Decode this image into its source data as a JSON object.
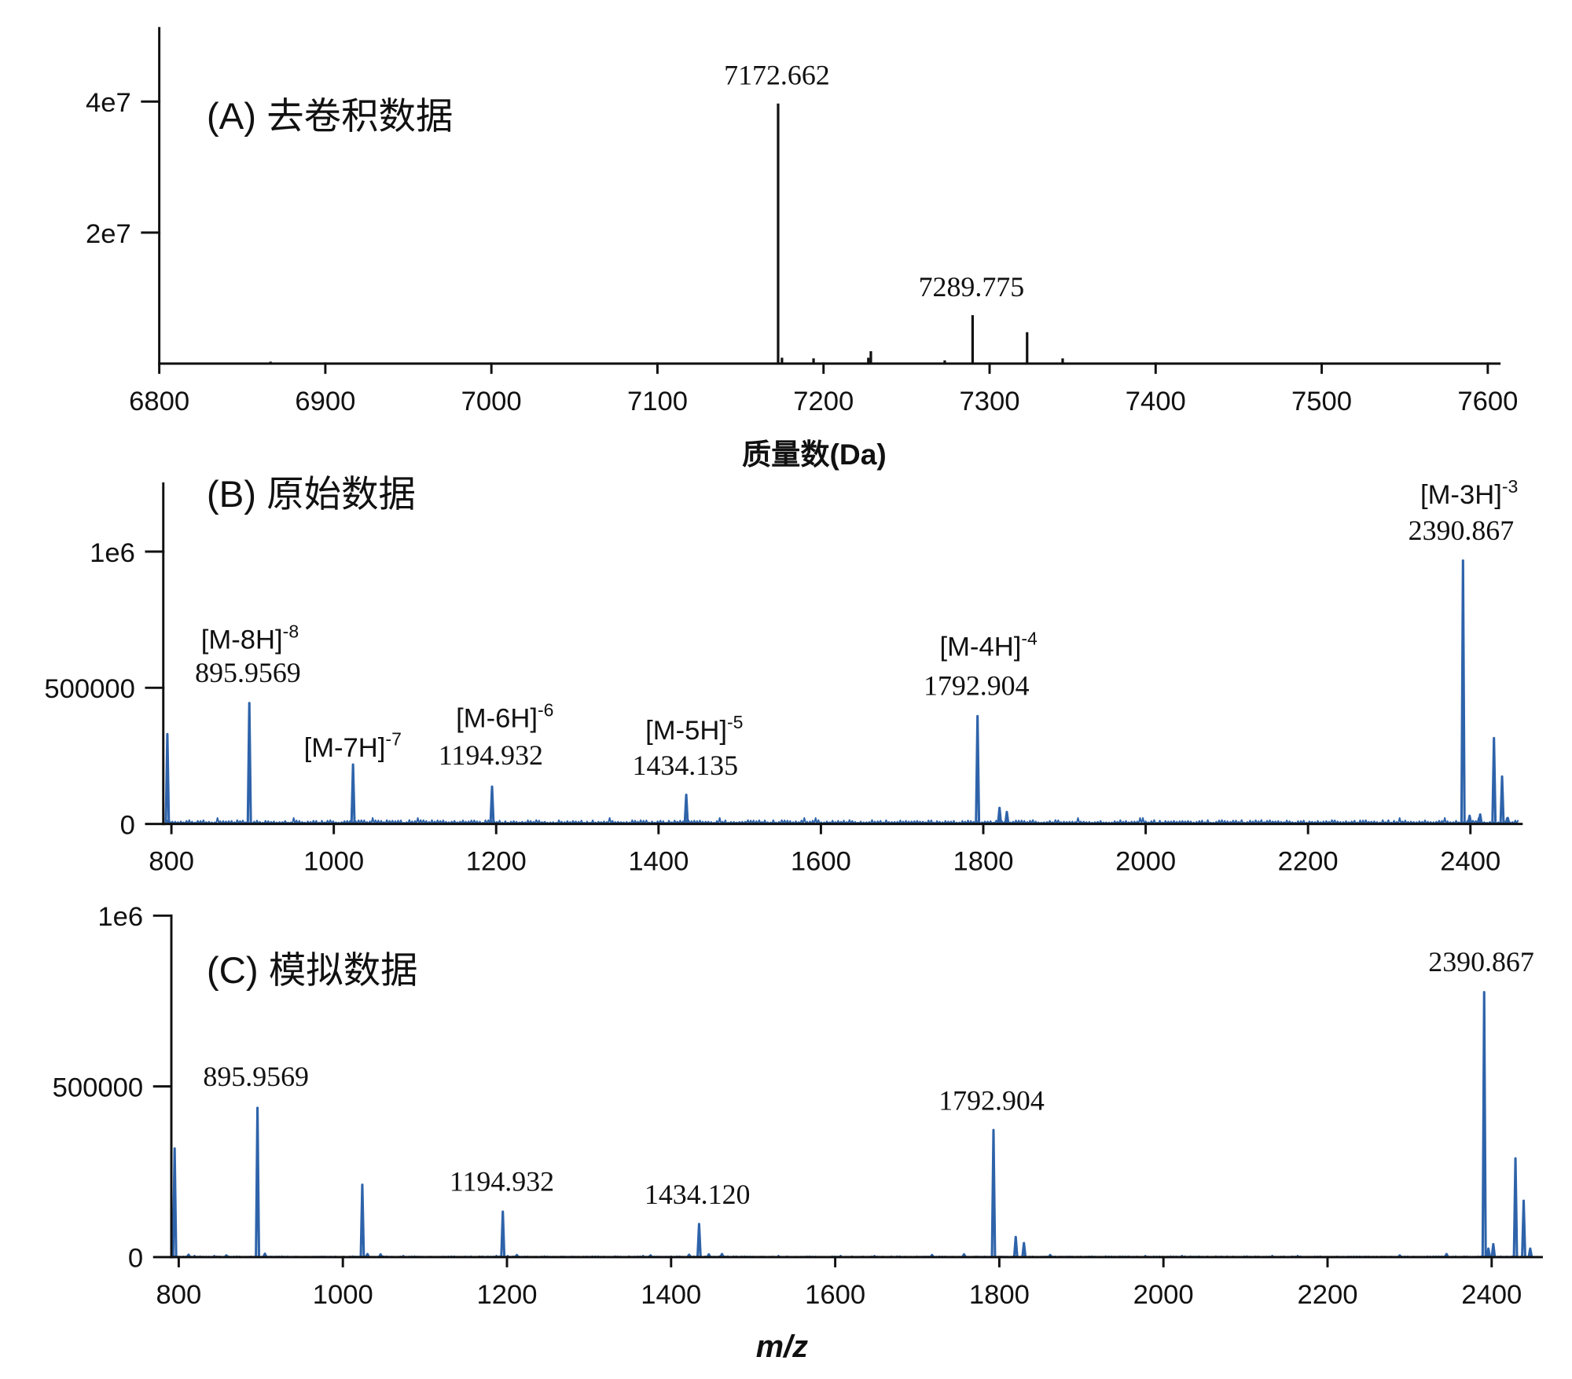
{
  "chart_data": [
    {
      "type": "bar",
      "title": "(A) 去卷积数据",
      "xlabel": "质量数(Da)",
      "xlim": [
        6800,
        7607
      ],
      "ylim": [
        0,
        51200000
      ],
      "xticks": [
        6800,
        6900,
        7000,
        7100,
        7200,
        7300,
        7400,
        7500,
        7600
      ],
      "yticks": [
        20000000,
        40000000
      ],
      "ytick_labels": [
        "2e7",
        "4e7"
      ],
      "grid": false,
      "color": "#111111",
      "series": [
        {
          "x": [
            6867,
            7172.662,
            7175,
            7194,
            7227,
            7228.5,
            7273,
            7289.775,
            7322.6,
            7344
          ],
          "y": [
            300000,
            39700000,
            900000,
            800000,
            900000,
            1900000,
            500000,
            7400000,
            4800000,
            800000
          ]
        }
      ],
      "annotations": [
        {
          "text": "7172.662"
        },
        {
          "text": "7289.775"
        }
      ]
    },
    {
      "type": "line",
      "title": "(B) 原始数据",
      "xlim": [
        790,
        2463
      ],
      "ylim": [
        0,
        1250000
      ],
      "xticks": [
        800,
        1000,
        1200,
        1400,
        1600,
        1800,
        2000,
        2200,
        2400
      ],
      "yticks": [
        0,
        500000,
        1000000
      ],
      "ytick_labels": [
        "0",
        "500000",
        "1e6"
      ],
      "grid": false,
      "color": "#2e63aa",
      "noise_level": 15000,
      "series": [
        {
          "x": [
            795,
            895.9569,
            1023.7,
            1194.932,
            1434.135,
            1792.904,
            1820,
            1829,
            2390.867,
            2399,
            2412,
            2429,
            2439,
            2446
          ],
          "y": [
            330000,
            444000,
            218000,
            137000,
            107000,
            396000,
            59000,
            44000,
            967000,
            30000,
            35000,
            315000,
            174000,
            22000
          ]
        }
      ],
      "annotations": [
        {
          "ion": "[M-8H]",
          "charge": "-8",
          "text": "895.9569"
        },
        {
          "ion": "[M-7H]",
          "charge": "-7"
        },
        {
          "ion": "[M-6H]",
          "charge": "-6",
          "text": "1194.932"
        },
        {
          "ion": "[M-5H]",
          "charge": "-5",
          "text": "1434.135"
        },
        {
          "ion": "[M-4H]",
          "charge": "-4",
          "text": "1792.904"
        },
        {
          "ion": "[M-3H]",
          "charge": "-3",
          "text": "2390.867"
        }
      ]
    },
    {
      "type": "line",
      "title": "(C) 模拟数据",
      "xlabel": "m/z",
      "xlim": [
        791,
        2461
      ],
      "ylim": [
        0,
        1000000
      ],
      "xticks": [
        800,
        1000,
        1200,
        1400,
        1600,
        1800,
        2000,
        2200,
        2400
      ],
      "yticks": [
        0,
        500000,
        1000000
      ],
      "ytick_labels": [
        "0",
        "500000",
        "1e6"
      ],
      "grid": false,
      "color": "#2e63aa",
      "noise_level": 3000,
      "series": [
        {
          "x": [
            795,
            812,
            858,
            895.9569,
            905,
            1023.7,
            1030,
            1046,
            1194.932,
            1212,
            1375,
            1422,
            1434.12,
            1446,
            1462,
            1718,
            1757,
            1792.904,
            1820,
            1830,
            1862,
            2288,
            2345,
            2390.867,
            2396,
            2402,
            2429,
            2439,
            2447
          ],
          "y": [
            318000,
            7000,
            5000,
            437000,
            10000,
            212000,
            9000,
            8000,
            133000,
            6000,
            5000,
            7000,
            97000,
            8000,
            9000,
            6000,
            8000,
            372000,
            59000,
            41000,
            6000,
            5000,
            9000,
            776000,
            25000,
            38000,
            289000,
            165000,
            25000
          ]
        }
      ],
      "annotations": [
        {
          "text": "895.9569"
        },
        {
          "text": "1194.932"
        },
        {
          "text": "1434.120"
        },
        {
          "text": "1792.904"
        },
        {
          "text": "2390.867"
        }
      ]
    }
  ]
}
